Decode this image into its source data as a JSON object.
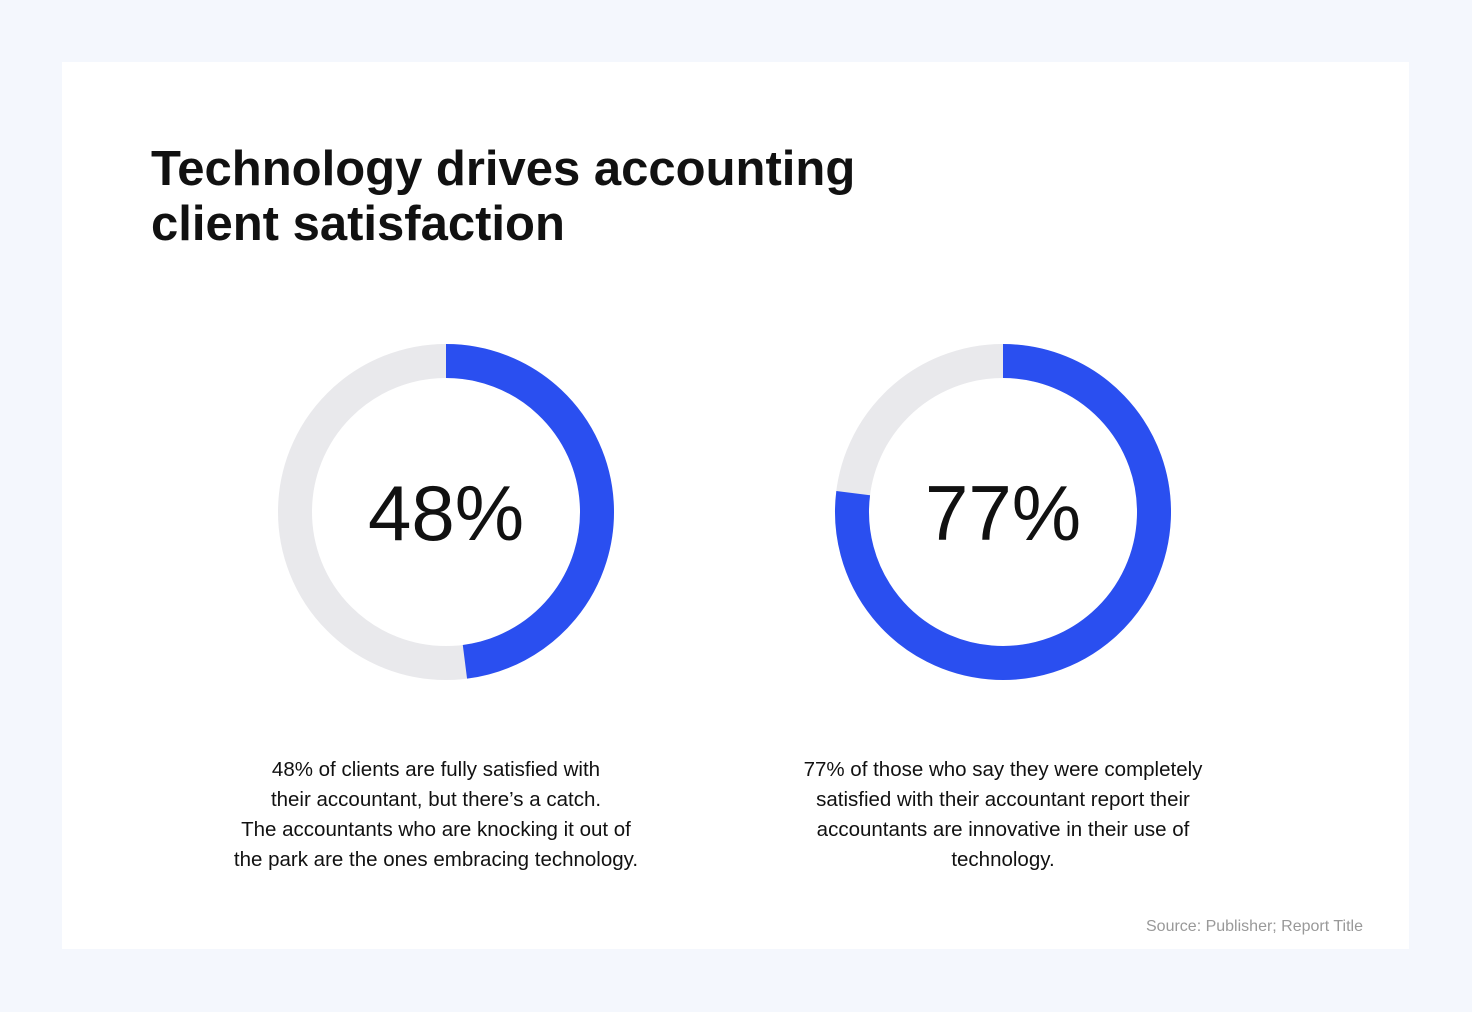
{
  "title": [
    "Technology drives accounting",
    "client satisfaction"
  ],
  "source": "Source: Publisher; Report Title",
  "chart_data": [
    {
      "type": "donut",
      "values": [
        48
      ],
      "value_labels": [
        "48%"
      ],
      "ylim": [
        0,
        100
      ],
      "color": "#2a4ff0",
      "track_color": "#e9e9ec",
      "caption": [
        "48% of clients are fully satisfied with",
        "their accountant, but there’s a catch.",
        "The accountants who are knocking it out of",
        "the park are the ones embracing technology."
      ]
    },
    {
      "type": "donut",
      "values": [
        77
      ],
      "value_labels": [
        "77%"
      ],
      "ylim": [
        0,
        100
      ],
      "color": "#2a4ff0",
      "track_color": "#e9e9ec",
      "caption": [
        "77% of those who say they were completely",
        "satisfied with their accountant report their",
        "accountants are innovative in their use of",
        "technology."
      ]
    }
  ]
}
